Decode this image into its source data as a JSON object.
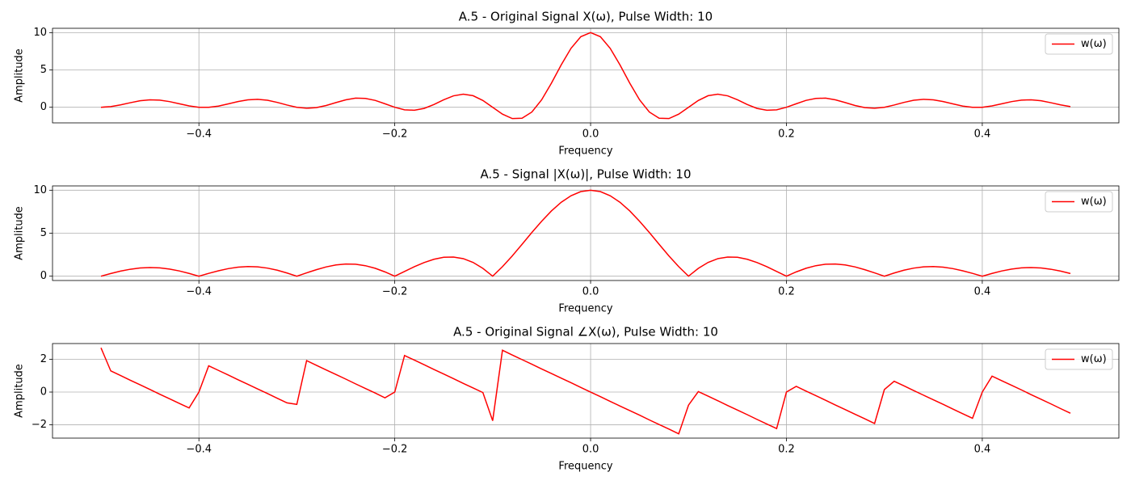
{
  "chart_data": [
    {
      "type": "line",
      "title": "A.5 - Original Signal X(ω), Pulse Width: 10",
      "xlabel": "Frequency",
      "ylabel": "Amplitude",
      "x": [
        -0.5,
        -0.49,
        -0.48,
        -0.47,
        -0.46,
        -0.45,
        -0.44,
        -0.43,
        -0.42,
        -0.41,
        -0.4,
        -0.39,
        -0.38,
        -0.37,
        -0.36,
        -0.35,
        -0.34,
        -0.33,
        -0.32,
        -0.31,
        -0.3,
        -0.29,
        -0.28,
        -0.27,
        -0.26,
        -0.25,
        -0.24,
        -0.23,
        -0.22,
        -0.21,
        -0.2,
        -0.19,
        -0.18,
        -0.17,
        -0.16,
        -0.15,
        -0.14,
        -0.13,
        -0.12,
        -0.11,
        -0.1,
        -0.09,
        -0.08,
        -0.07,
        -0.06,
        -0.05,
        -0.04,
        -0.03,
        -0.02,
        -0.01,
        0,
        0.01,
        0.02,
        0.03,
        0.04,
        0.05,
        0.06,
        0.07,
        0.08,
        0.09,
        0.1,
        0.11,
        0.12,
        0.13,
        0.14,
        0.15,
        0.16,
        0.17,
        0.18,
        0.19,
        0.2,
        0.21,
        0.22,
        0.23,
        0.24,
        0.25,
        0.26,
        0.27,
        0.28,
        0.29,
        0.3,
        0.31,
        0.32,
        0.33,
        0.34,
        0.35,
        0.36,
        0.37,
        0.38,
        0.39,
        0.4,
        0.41,
        0.42,
        0.43,
        0.44,
        0.45,
        0.46,
        0.47,
        0.48,
        0.49
      ],
      "series": [
        {
          "name": "w(ω)",
          "color": "#ff0000",
          "values": [
            0,
            0.09,
            0.32,
            0.61,
            0.87,
            1.0,
            0.96,
            0.76,
            0.47,
            0.18,
            0,
            -0.01,
            0.16,
            0.45,
            0.77,
            1.0,
            1.07,
            0.94,
            0.65,
            0.3,
            0,
            -0.13,
            -0.05,
            0.24,
            0.63,
            1.0,
            1.22,
            1.19,
            0.92,
            0.47,
            0,
            -0.34,
            -0.4,
            -0.15,
            0.37,
            1.0,
            1.53,
            1.75,
            1.55,
            0.91,
            0,
            -0.92,
            -1.51,
            -1.47,
            -0.64,
            1.0,
            3.23,
            5.68,
            7.9,
            9.45,
            10,
            9.45,
            7.9,
            5.68,
            3.23,
            1.0,
            -0.64,
            -1.47,
            -1.51,
            -0.92,
            0,
            0.91,
            1.55,
            1.75,
            1.53,
            1.0,
            0.37,
            -0.15,
            -0.4,
            -0.34,
            0,
            0.47,
            0.92,
            1.19,
            1.22,
            1.0,
            0.63,
            0.24,
            -0.05,
            -0.13,
            0,
            0.3,
            0.65,
            0.94,
            1.07,
            1.0,
            0.77,
            0.45,
            0.16,
            -0.01,
            0,
            0.18,
            0.47,
            0.76,
            0.96,
            1.0,
            0.87,
            0.61,
            0.32,
            0.09
          ]
        }
      ],
      "xlim": [
        -0.5495,
        0.5395
      ],
      "ylim": [
        -2.09,
        10.58
      ],
      "xticks": [
        {
          "value": -0.4,
          "label": "−0.4"
        },
        {
          "value": -0.2,
          "label": "−0.2"
        },
        {
          "value": 0,
          "label": "0.0"
        },
        {
          "value": 0.2,
          "label": "0.2"
        },
        {
          "value": 0.4,
          "label": "0.4"
        }
      ],
      "yticks": [
        0,
        5,
        10
      ],
      "grid": true,
      "legend": "upper right"
    },
    {
      "type": "line",
      "title": "A.5 - Signal |X(ω)|, Pulse Width: 10",
      "xlabel": "Frequency",
      "ylabel": "Amplitude",
      "x": [
        -0.5,
        -0.49,
        -0.48,
        -0.47,
        -0.46,
        -0.45,
        -0.44,
        -0.43,
        -0.42,
        -0.41,
        -0.4,
        -0.39,
        -0.38,
        -0.37,
        -0.36,
        -0.35,
        -0.34,
        -0.33,
        -0.32,
        -0.31,
        -0.3,
        -0.29,
        -0.28,
        -0.27,
        -0.26,
        -0.25,
        -0.24,
        -0.23,
        -0.22,
        -0.21,
        -0.2,
        -0.19,
        -0.18,
        -0.17,
        -0.16,
        -0.15,
        -0.14,
        -0.13,
        -0.12,
        -0.11,
        -0.1,
        -0.09,
        -0.08,
        -0.07,
        -0.06,
        -0.05,
        -0.04,
        -0.03,
        -0.02,
        -0.01,
        0,
        0.01,
        0.02,
        0.03,
        0.04,
        0.05,
        0.06,
        0.07,
        0.08,
        0.09,
        0.1,
        0.11,
        0.12,
        0.13,
        0.14,
        0.15,
        0.16,
        0.17,
        0.18,
        0.19,
        0.2,
        0.21,
        0.22,
        0.23,
        0.24,
        0.25,
        0.26,
        0.27,
        0.28,
        0.29,
        0.3,
        0.31,
        0.32,
        0.33,
        0.34,
        0.35,
        0.36,
        0.37,
        0.38,
        0.39,
        0.4,
        0.41,
        0.42,
        0.43,
        0.44,
        0.45,
        0.46,
        0.47,
        0.48,
        0.49
      ],
      "series": [
        {
          "name": "w(ω)",
          "color": "#ff0000",
          "values": [
            0,
            0.31,
            0.59,
            0.81,
            0.96,
            1.01,
            0.97,
            0.83,
            0.61,
            0.32,
            0,
            0.33,
            0.63,
            0.88,
            1.05,
            1.12,
            1.09,
            0.94,
            0.7,
            0.37,
            0,
            0.39,
            0.76,
            1.08,
            1.31,
            1.41,
            1.39,
            1.22,
            0.92,
            0.5,
            0,
            0.55,
            1.1,
            1.59,
            1.97,
            2.2,
            2.23,
            2.04,
            1.6,
            0.91,
            0,
            1.11,
            2.36,
            3.71,
            5.08,
            6.39,
            7.59,
            8.6,
            9.36,
            9.84,
            10,
            9.84,
            9.36,
            8.6,
            7.59,
            6.39,
            5.08,
            3.71,
            2.36,
            1.11,
            0,
            0.91,
            1.6,
            2.04,
            2.23,
            2.2,
            1.97,
            1.59,
            1.1,
            0.55,
            0,
            0.5,
            0.92,
            1.22,
            1.39,
            1.41,
            1.31,
            1.08,
            0.76,
            0.39,
            0,
            0.37,
            0.7,
            0.94,
            1.09,
            1.12,
            1.05,
            0.88,
            0.63,
            0.33,
            0,
            0.32,
            0.61,
            0.83,
            0.97,
            1.01,
            0.96,
            0.81,
            0.59,
            0.31
          ]
        }
      ],
      "xlim": [
        -0.5495,
        0.5395
      ],
      "ylim": [
        -0.5,
        10.5
      ],
      "xticks": [
        {
          "value": -0.4,
          "label": "−0.4"
        },
        {
          "value": -0.2,
          "label": "−0.2"
        },
        {
          "value": 0,
          "label": "0.0"
        },
        {
          "value": 0.2,
          "label": "0.2"
        },
        {
          "value": 0.4,
          "label": "0.4"
        }
      ],
      "yticks": [
        0,
        5,
        10
      ],
      "grid": true,
      "legend": "upper right"
    },
    {
      "type": "line",
      "title": "A.5 - Original Signal ∠X(ω), Pulse Width: 10",
      "xlabel": "Frequency",
      "ylabel": "Amplitude",
      "x": [
        -0.5,
        -0.49,
        -0.48,
        -0.47,
        -0.46,
        -0.45,
        -0.44,
        -0.43,
        -0.42,
        -0.41,
        -0.4,
        -0.39,
        -0.38,
        -0.37,
        -0.36,
        -0.35,
        -0.34,
        -0.33,
        -0.32,
        -0.31,
        -0.3,
        -0.29,
        -0.28,
        -0.27,
        -0.26,
        -0.25,
        -0.24,
        -0.23,
        -0.22,
        -0.21,
        -0.2,
        -0.19,
        -0.18,
        -0.17,
        -0.16,
        -0.15,
        -0.14,
        -0.13,
        -0.12,
        -0.11,
        -0.1,
        -0.09,
        -0.08,
        -0.07,
        -0.06,
        -0.05,
        -0.04,
        -0.03,
        -0.02,
        -0.01,
        0,
        0.01,
        0.02,
        0.03,
        0.04,
        0.05,
        0.06,
        0.07,
        0.08,
        0.09,
        0.1,
        0.11,
        0.12,
        0.13,
        0.14,
        0.15,
        0.16,
        0.17,
        0.18,
        0.19,
        0.2,
        0.21,
        0.22,
        0.23,
        0.24,
        0.25,
        0.26,
        0.27,
        0.28,
        0.29,
        0.3,
        0.31,
        0.32,
        0.33,
        0.34,
        0.35,
        0.36,
        0.37,
        0.38,
        0.39,
        0.4,
        0.41,
        0.42,
        0.43,
        0.44,
        0.45,
        0.46,
        0.47,
        0.48,
        0.49
      ],
      "series": [
        {
          "name": "w(ω)",
          "color": "#ff0000",
          "values": [
            2.7,
            1.29,
            1.01,
            0.72,
            0.44,
            0.16,
            -0.13,
            -0.41,
            -0.69,
            -0.97,
            0.0,
            1.6,
            1.32,
            1.04,
            0.75,
            0.47,
            0.19,
            -0.09,
            -0.38,
            -0.66,
            -0.75,
            1.92,
            1.63,
            1.35,
            1.07,
            0.79,
            0.5,
            0.22,
            -0.06,
            -0.35,
            0.0,
            2.23,
            1.95,
            1.67,
            1.38,
            1.1,
            0.82,
            0.53,
            0.25,
            -0.03,
            -1.75,
            2.55,
            2.26,
            1.98,
            1.7,
            1.41,
            1.13,
            0.85,
            0.57,
            0.28,
            0.0,
            -0.28,
            -0.57,
            -0.85,
            -1.13,
            -1.41,
            -1.7,
            -1.98,
            -2.26,
            -2.55,
            -0.8,
            0.03,
            -0.25,
            -0.53,
            -0.82,
            -1.1,
            -1.38,
            -1.67,
            -1.95,
            -2.23,
            0.0,
            0.35,
            0.06,
            -0.22,
            -0.5,
            -0.79,
            -1.07,
            -1.35,
            -1.63,
            -1.92,
            0.15,
            0.66,
            0.38,
            0.09,
            -0.19,
            -0.47,
            -0.75,
            -1.04,
            -1.32,
            -1.6,
            0.0,
            0.97,
            0.69,
            0.41,
            0.13,
            -0.16,
            -0.44,
            -0.72,
            -1.01,
            -1.29
          ]
        }
      ],
      "xlim": [
        -0.5495,
        0.5395
      ],
      "ylim": [
        -2.81,
        2.96
      ],
      "xticks": [
        {
          "value": -0.4,
          "label": "−0.4"
        },
        {
          "value": -0.2,
          "label": "−0.2"
        },
        {
          "value": 0,
          "label": "0.0"
        },
        {
          "value": 0.2,
          "label": "0.2"
        },
        {
          "value": 0.4,
          "label": "0.4"
        }
      ],
      "yticks": [
        {
          "value": -2,
          "label": "−2"
        },
        0,
        2
      ],
      "grid": true,
      "legend": "upper right"
    }
  ]
}
